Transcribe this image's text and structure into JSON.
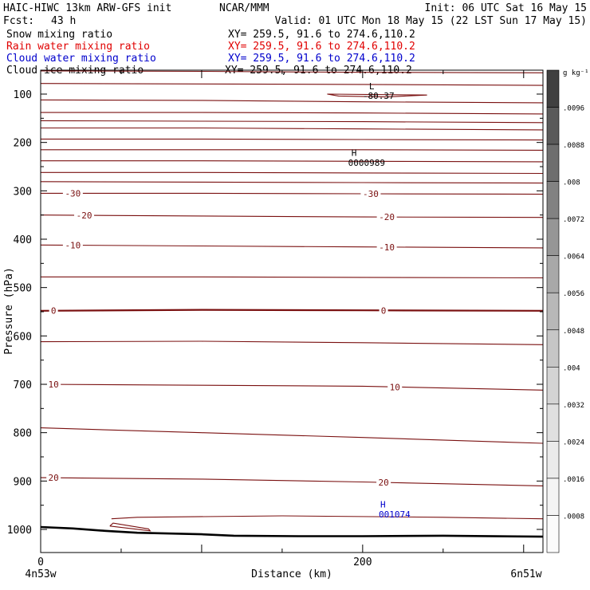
{
  "header": {
    "title": "HAIC-HIWC 13km ARW-GFS init",
    "org": "NCAR/MMM",
    "init": "Init: 06 UTC Sat 16 May 15",
    "fcst_label": "Fcst:",
    "fcst_value": "43 h",
    "valid": "Valid: 01 UTC Mon 18 May 15 (22 LST Sun 17 May 15)"
  },
  "fields": [
    {
      "name": "Snow mixing ratio",
      "xy": "XY= 259.5, 91.6 to 274.6,110.2",
      "color": "#000000"
    },
    {
      "name": "Rain water mixing ratio",
      "xy": "XY= 259.5, 91.6 to 274.6,110.2",
      "color": "#e00000"
    },
    {
      "name": "Cloud water mixing ratio",
      "xy": "XY= 259.5, 91.6 to 274.6,110.2",
      "color": "#0000cc"
    },
    {
      "name": "Cloud ice mixing ratio",
      "xy": "XY= 259.5, 91.6 to 274.6,110.2",
      "color": "#000000"
    }
  ],
  "chart_data": {
    "type": "cross-section",
    "ylabel": "Pressure (hPa)",
    "xlabel": "Distance (km)",
    "x_start_label": "4n53w",
    "x_end_label": "6n51w",
    "xlim": [
      0,
      312
    ],
    "ylim": [
      1050,
      60
    ],
    "x_ticks": [
      0,
      200
    ],
    "y_ticks": [
      100,
      200,
      300,
      400,
      500,
      600,
      700,
      800,
      900,
      1000
    ],
    "colorbar": {
      "unit": "g kg⁻¹",
      "ticks": [
        ".0096",
        ".0088",
        ".008",
        ".0072",
        ".0064",
        ".0056",
        ".0048",
        ".004",
        ".0032",
        ".0024",
        ".0016",
        ".0008"
      ],
      "colors": [
        "#404040",
        "#5a5a5a",
        "#6e6e6e",
        "#828282",
        "#969696",
        "#a8a8a8",
        "#b8b8b8",
        "#c6c6c6",
        "#d4d4d4",
        "#e0e0e0",
        "#ebebeb",
        "#f4f4f4",
        "#fbfbfb"
      ]
    },
    "contour_color": "#7a1010",
    "isotherms": [
      {
        "x": [
          0,
          100,
          200,
          312
        ],
        "p": [
          52,
          53,
          55,
          56
        ]
      },
      {
        "x": [
          0,
          100,
          200,
          312
        ],
        "p": [
          78,
          79,
          80,
          82
        ]
      },
      {
        "x": [
          0,
          100,
          200,
          312
        ],
        "p": [
          112,
          113,
          116,
          118
        ]
      },
      {
        "x": [
          0,
          100,
          200,
          312
        ],
        "p": [
          138,
          138,
          139,
          141
        ]
      },
      {
        "x": [
          0,
          100,
          200,
          312
        ],
        "p": [
          155,
          156,
          157,
          159
        ]
      },
      {
        "x": [
          0,
          100,
          200,
          312
        ],
        "p": [
          170,
          170,
          172,
          174
        ]
      },
      {
        "x": [
          0,
          100,
          200,
          312
        ],
        "p": [
          193,
          193,
          194,
          195
        ]
      },
      {
        "x": [
          0,
          100,
          200,
          312
        ],
        "p": [
          215,
          215,
          215,
          216
        ]
      },
      {
        "x": [
          0,
          100,
          200,
          312
        ],
        "p": [
          238,
          238,
          239,
          240
        ]
      },
      {
        "x": [
          0,
          100,
          200,
          312
        ],
        "p": [
          262,
          262,
          263,
          264
        ]
      },
      {
        "x": [
          0,
          100,
          200,
          312
        ],
        "p": [
          281,
          282,
          283,
          284
        ]
      },
      {
        "x": [
          0,
          100,
          200,
          312
        ],
        "p": [
          305,
          305,
          306,
          307
        ],
        "label": "-30",
        "label_x": [
          20,
          205
        ]
      },
      {
        "x": [
          0,
          100,
          200,
          312
        ],
        "p": [
          350,
          352,
          354,
          355
        ],
        "label": "-20",
        "label_x": [
          27,
          215
        ]
      },
      {
        "x": [
          0,
          100,
          200,
          312
        ],
        "p": [
          412,
          414,
          416,
          418
        ],
        "label": "-10",
        "label_x": [
          20,
          215
        ]
      },
      {
        "x": [
          0,
          100,
          200,
          312
        ],
        "p": [
          478,
          478,
          479,
          480
        ]
      },
      {
        "x": [
          0,
          100,
          200,
          312
        ],
        "p": [
          548,
          546,
          547,
          548
        ],
        "label": "0",
        "label_x": [
          8,
          213
        ],
        "bold": true
      },
      {
        "x": [
          0,
          100,
          200,
          312
        ],
        "p": [
          612,
          611,
          614,
          618
        ]
      },
      {
        "x": [
          0,
          100,
          200,
          312
        ],
        "p": [
          700,
          702,
          704,
          712
        ],
        "label": "10",
        "label_x": [
          8,
          220
        ]
      },
      {
        "x": [
          0,
          100,
          200,
          312
        ],
        "p": [
          790,
          800,
          810,
          822
        ]
      },
      {
        "x": [
          0,
          100,
          200,
          312
        ],
        "p": [
          893,
          896,
          902,
          910
        ],
        "label": "20",
        "label_x": [
          8,
          213
        ]
      },
      {
        "x": [
          44,
          60,
          150,
          250,
          312
        ],
        "p": [
          978,
          975,
          972,
          975,
          978
        ]
      }
    ],
    "terrain": {
      "x": [
        0,
        20,
        40,
        60,
        100,
        120,
        160,
        200,
        250,
        312
      ],
      "p": [
        995,
        998,
        1003,
        1007,
        1010,
        1013,
        1014,
        1014,
        1013,
        1015
      ]
    },
    "small_loop": {
      "x": [
        43,
        68,
        67,
        45,
        43
      ],
      "p": [
        993,
        1003,
        999,
        987,
        993
      ]
    },
    "low_loop": {
      "x": [
        178,
        240,
        215,
        185,
        178
      ],
      "p": [
        100,
        102,
        106,
        104,
        100
      ]
    },
    "annotations": [
      {
        "text": "L",
        "x": 204,
        "p": 90,
        "color": "#000000"
      },
      {
        "text": "-80.37",
        "x": 200,
        "p": 110,
        "color": "#000000"
      },
      {
        "text": "H",
        "x": 193,
        "p": 228,
        "color": "#000000"
      },
      {
        "text": "0000989",
        "x": 191,
        "p": 248,
        "color": "#000000"
      },
      {
        "text": "H",
        "x": 211,
        "p": 955,
        "color": "#0000cc"
      },
      {
        "text": "001074",
        "x": 210,
        "p": 975,
        "color": "#0000cc"
      }
    ]
  }
}
